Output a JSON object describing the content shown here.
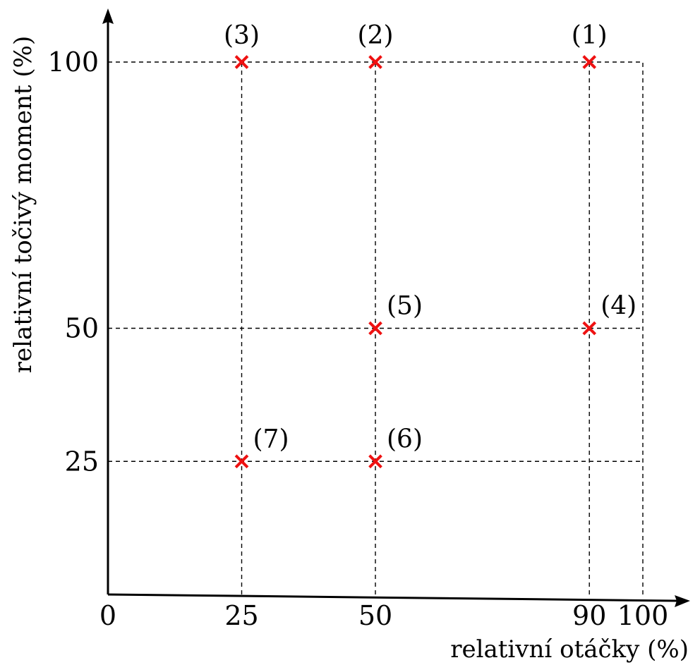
{
  "chart_data": {
    "type": "scatter",
    "xlabel": "relativní otáčky (%)",
    "ylabel": "relativní točivý moment (%)",
    "xlim": [
      0,
      100
    ],
    "ylim": [
      0,
      100
    ],
    "x_ticks": [
      "0",
      "25",
      "50",
      "90",
      "100"
    ],
    "y_ticks": [
      "25",
      "50",
      "100"
    ],
    "grid": "dashed guides from each point to the axes",
    "marker": "x",
    "marker_color": "#ee1111",
    "points": [
      {
        "label": "(1)",
        "x": 90,
        "y": 100
      },
      {
        "label": "(2)",
        "x": 50,
        "y": 100
      },
      {
        "label": "(3)",
        "x": 25,
        "y": 100
      },
      {
        "label": "(4)",
        "x": 90,
        "y": 50
      },
      {
        "label": "(5)",
        "x": 50,
        "y": 50
      },
      {
        "label": "(6)",
        "x": 50,
        "y": 25
      },
      {
        "label": "(7)",
        "x": 25,
        "y": 25
      }
    ]
  }
}
